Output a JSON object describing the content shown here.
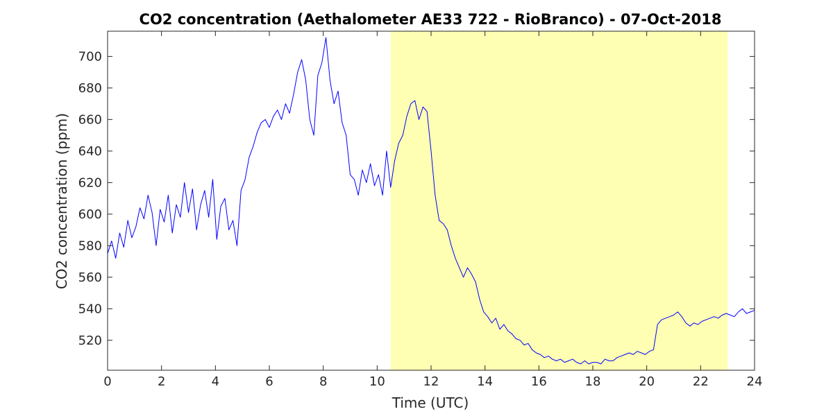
{
  "chart_data": {
    "type": "line",
    "title": "CO2 concentration (Aethalometer AE33 722 - RioBranco) - 07-Oct-2018",
    "xlabel": "Time (UTC)",
    "ylabel": "CO2 concentration (ppm)",
    "xlim": [
      0,
      24
    ],
    "ylim": [
      501,
      716
    ],
    "xticks": [
      0,
      2,
      4,
      6,
      8,
      10,
      12,
      14,
      16,
      18,
      20,
      22,
      24
    ],
    "yticks": [
      520,
      540,
      560,
      580,
      600,
      620,
      640,
      660,
      680,
      700
    ],
    "grid": false,
    "legend": "none",
    "highlight": {
      "x_start": 10.5,
      "x_end": 23.0,
      "color": "#ffffb3"
    },
    "series": [
      {
        "color": "#0000ff",
        "x": [
          0.0,
          0.15,
          0.3,
          0.45,
          0.6,
          0.75,
          0.9,
          1.05,
          1.2,
          1.35,
          1.5,
          1.65,
          1.8,
          1.95,
          2.1,
          2.25,
          2.4,
          2.55,
          2.7,
          2.85,
          3.0,
          3.15,
          3.3,
          3.45,
          3.6,
          3.75,
          3.9,
          4.05,
          4.2,
          4.35,
          4.5,
          4.65,
          4.8,
          4.95,
          5.1,
          5.25,
          5.4,
          5.55,
          5.7,
          5.85,
          6.0,
          6.15,
          6.3,
          6.45,
          6.6,
          6.75,
          6.9,
          7.05,
          7.2,
          7.35,
          7.5,
          7.65,
          7.8,
          7.95,
          8.1,
          8.25,
          8.4,
          8.55,
          8.7,
          8.85,
          9.0,
          9.15,
          9.3,
          9.45,
          9.6,
          9.75,
          9.9,
          10.05,
          10.2,
          10.35,
          10.5,
          10.65,
          10.8,
          10.95,
          11.1,
          11.25,
          11.4,
          11.55,
          11.7,
          11.85,
          12.0,
          12.15,
          12.3,
          12.45,
          12.6,
          12.75,
          12.9,
          13.05,
          13.2,
          13.35,
          13.5,
          13.65,
          13.8,
          13.95,
          14.1,
          14.25,
          14.4,
          14.55,
          14.7,
          14.85,
          15.0,
          15.15,
          15.3,
          15.45,
          15.6,
          15.75,
          15.9,
          16.05,
          16.2,
          16.35,
          16.5,
          16.65,
          16.8,
          16.95,
          17.1,
          17.25,
          17.4,
          17.55,
          17.7,
          17.85,
          18.0,
          18.15,
          18.3,
          18.45,
          18.6,
          18.75,
          18.9,
          19.05,
          19.2,
          19.35,
          19.5,
          19.65,
          19.8,
          19.95,
          20.1,
          20.25,
          20.4,
          20.55,
          20.7,
          20.85,
          21.0,
          21.15,
          21.3,
          21.45,
          21.6,
          21.75,
          21.9,
          22.05,
          22.2,
          22.35,
          22.5,
          22.65,
          22.8,
          22.95,
          23.1,
          23.25,
          23.4,
          23.55,
          23.7,
          23.85,
          24.0
        ],
        "y": [
          575,
          583,
          572,
          588,
          579,
          596,
          585,
          592,
          604,
          597,
          612,
          601,
          580,
          603,
          595,
          612,
          588,
          606,
          598,
          620,
          601,
          616,
          590,
          606,
          615,
          598,
          622,
          584,
          605,
          610,
          590,
          596,
          580,
          615,
          622,
          636,
          643,
          652,
          658,
          660,
          655,
          662,
          666,
          660,
          670,
          664,
          676,
          690,
          698,
          685,
          660,
          650,
          688,
          696,
          712,
          685,
          670,
          678,
          658,
          650,
          625,
          622,
          612,
          628,
          620,
          632,
          618,
          625,
          612,
          640,
          617,
          634,
          645,
          650,
          662,
          670,
          672,
          660,
          668,
          665,
          640,
          612,
          596,
          594,
          590,
          580,
          572,
          566,
          560,
          566,
          562,
          557,
          546,
          538,
          535,
          531,
          534,
          527,
          530,
          526,
          524,
          521,
          520,
          517,
          518,
          514,
          512,
          511,
          509,
          510,
          508,
          507,
          508,
          506,
          507,
          508,
          506,
          505,
          507,
          505,
          506,
          506,
          505,
          508,
          507,
          507,
          509,
          510,
          511,
          512,
          511,
          513,
          512,
          511,
          513,
          514,
          530,
          533,
          534,
          535,
          536,
          538,
          535,
          531,
          529,
          531,
          530,
          532,
          533,
          534,
          535,
          534,
          536,
          537,
          536,
          535,
          538,
          540,
          537,
          538,
          539
        ]
      }
    ]
  }
}
